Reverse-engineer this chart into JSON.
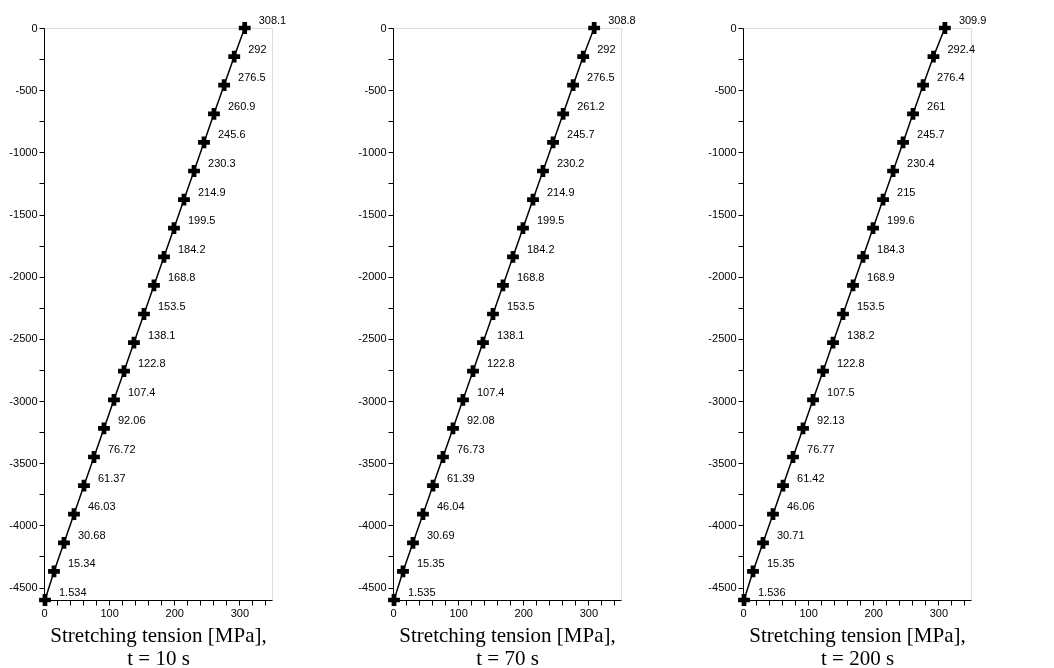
{
  "chart_data": [
    {
      "type": "line",
      "xlabel": "Stretching tension [MPa],\nt = 10 s",
      "marker": "cross",
      "grid": false,
      "xlim": [
        0,
        350
      ],
      "ylim": [
        -4600,
        0
      ],
      "xticks": [
        0,
        {
          "value": 20,
          "label": null
        },
        {
          "value": 40,
          "label": null
        },
        {
          "value": 60,
          "label": null
        },
        {
          "value": 80,
          "label": null
        },
        100,
        {
          "value": 120,
          "label": null
        },
        {
          "value": 140,
          "label": null
        },
        {
          "value": 160,
          "label": null
        },
        {
          "value": 180,
          "label": null
        },
        200,
        {
          "value": 220,
          "label": null
        },
        {
          "value": 240,
          "label": null
        },
        {
          "value": 260,
          "label": null
        },
        {
          "value": 280,
          "label": null
        },
        300,
        {
          "value": 320,
          "label": null
        },
        {
          "value": 340,
          "label": null
        }
      ],
      "yticks": [
        0,
        {
          "value": -250,
          "label": null
        },
        -500,
        {
          "value": -750,
          "label": null
        },
        -1000,
        {
          "value": -1250,
          "label": null
        },
        -1500,
        {
          "value": -1750,
          "label": null
        },
        -2000,
        {
          "value": -2250,
          "label": null
        },
        -2500,
        {
          "value": -2750,
          "label": null
        },
        -3000,
        {
          "value": -3250,
          "label": null
        },
        -3500,
        {
          "value": -3750,
          "label": null
        },
        -4000,
        {
          "value": -4250,
          "label": null
        },
        -4500
      ],
      "series": [
        {
          "color": "#000000",
          "x": [
            308.1,
            292,
            276.5,
            260.9,
            245.6,
            230.3,
            214.9,
            199.5,
            184.2,
            168.8,
            153.5,
            138.1,
            122.8,
            107.4,
            92.06,
            76.72,
            61.37,
            46.03,
            30.68,
            15.34,
            1.534
          ],
          "values": [
            0,
            -230,
            -460,
            -690,
            -920,
            -1150,
            -1380,
            -1610,
            -1840,
            -2070,
            -2300,
            -2530,
            -2760,
            -2990,
            -3220,
            -3450,
            -3680,
            -3910,
            -4140,
            -4370,
            -4600
          ]
        }
      ],
      "annotations": [
        {
          "text": "308.1",
          "x": 308.1,
          "y": 0
        },
        {
          "text": "292",
          "x": 292,
          "y": -230
        },
        {
          "text": "276.5",
          "x": 276.5,
          "y": -460
        },
        {
          "text": "260.9",
          "x": 260.9,
          "y": -690
        },
        {
          "text": "245.6",
          "x": 245.6,
          "y": -920
        },
        {
          "text": "230.3",
          "x": 230.3,
          "y": -1150
        },
        {
          "text": "214.9",
          "x": 214.9,
          "y": -1380
        },
        {
          "text": "199.5",
          "x": 199.5,
          "y": -1610
        },
        {
          "text": "184.2",
          "x": 184.2,
          "y": -1840
        },
        {
          "text": "168.8",
          "x": 168.8,
          "y": -2070
        },
        {
          "text": "153.5",
          "x": 153.5,
          "y": -2300
        },
        {
          "text": "138.1",
          "x": 138.1,
          "y": -2530
        },
        {
          "text": "122.8",
          "x": 122.8,
          "y": -2760
        },
        {
          "text": "107.4",
          "x": 107.4,
          "y": -2990
        },
        {
          "text": "92.06",
          "x": 92.06,
          "y": -3220
        },
        {
          "text": "76.72",
          "x": 76.72,
          "y": -3450
        },
        {
          "text": "61.37",
          "x": 61.37,
          "y": -3680
        },
        {
          "text": "46.03",
          "x": 46.03,
          "y": -3910
        },
        {
          "text": "30.68",
          "x": 30.68,
          "y": -4140
        },
        {
          "text": "15.34",
          "x": 15.34,
          "y": -4370
        },
        {
          "text": "1.534",
          "x": 1.534,
          "y": -4600
        }
      ]
    },
    {
      "type": "line",
      "xlabel": "Stretching tension [MPa],\nt = 70 s",
      "marker": "cross",
      "grid": false,
      "xlim": [
        0,
        350
      ],
      "ylim": [
        -4600,
        0
      ],
      "xticks": [
        0,
        {
          "value": 20,
          "label": null
        },
        {
          "value": 40,
          "label": null
        },
        {
          "value": 60,
          "label": null
        },
        {
          "value": 80,
          "label": null
        },
        100,
        {
          "value": 120,
          "label": null
        },
        {
          "value": 140,
          "label": null
        },
        {
          "value": 160,
          "label": null
        },
        {
          "value": 180,
          "label": null
        },
        200,
        {
          "value": 220,
          "label": null
        },
        {
          "value": 240,
          "label": null
        },
        {
          "value": 260,
          "label": null
        },
        {
          "value": 280,
          "label": null
        },
        300,
        {
          "value": 320,
          "label": null
        },
        {
          "value": 340,
          "label": null
        }
      ],
      "yticks": [
        0,
        {
          "value": -250,
          "label": null
        },
        -500,
        {
          "value": -750,
          "label": null
        },
        -1000,
        {
          "value": -1250,
          "label": null
        },
        -1500,
        {
          "value": -1750,
          "label": null
        },
        -2000,
        {
          "value": -2250,
          "label": null
        },
        -2500,
        {
          "value": -2750,
          "label": null
        },
        -3000,
        {
          "value": -3250,
          "label": null
        },
        -3500,
        {
          "value": -3750,
          "label": null
        },
        -4000,
        {
          "value": -4250,
          "label": null
        },
        -4500
      ],
      "series": [
        {
          "color": "#000000",
          "x": [
            308.8,
            292,
            276.5,
            261.2,
            245.7,
            230.2,
            214.9,
            199.5,
            184.2,
            168.8,
            153.5,
            138.1,
            122.8,
            107.4,
            92.08,
            76.73,
            61.39,
            46.04,
            30.69,
            15.35,
            1.535
          ],
          "values": [
            0,
            -230,
            -460,
            -690,
            -920,
            -1150,
            -1380,
            -1610,
            -1840,
            -2070,
            -2300,
            -2530,
            -2760,
            -2990,
            -3220,
            -3450,
            -3680,
            -3910,
            -4140,
            -4370,
            -4600
          ]
        }
      ],
      "annotations": [
        {
          "text": "308.8",
          "x": 308.8,
          "y": 0
        },
        {
          "text": "292",
          "x": 292,
          "y": -230
        },
        {
          "text": "276.5",
          "x": 276.5,
          "y": -460
        },
        {
          "text": "261.2",
          "x": 261.2,
          "y": -690
        },
        {
          "text": "245.7",
          "x": 245.7,
          "y": -920
        },
        {
          "text": "230.2",
          "x": 230.2,
          "y": -1150
        },
        {
          "text": "214.9",
          "x": 214.9,
          "y": -1380
        },
        {
          "text": "199.5",
          "x": 199.5,
          "y": -1610
        },
        {
          "text": "184.2",
          "x": 184.2,
          "y": -1840
        },
        {
          "text": "168.8",
          "x": 168.8,
          "y": -2070
        },
        {
          "text": "153.5",
          "x": 153.5,
          "y": -2300
        },
        {
          "text": "138.1",
          "x": 138.1,
          "y": -2530
        },
        {
          "text": "122.8",
          "x": 122.8,
          "y": -2760
        },
        {
          "text": "107.4",
          "x": 107.4,
          "y": -2990
        },
        {
          "text": "92.08",
          "x": 92.08,
          "y": -3220
        },
        {
          "text": "76.73",
          "x": 76.73,
          "y": -3450
        },
        {
          "text": "61.39",
          "x": 61.39,
          "y": -3680
        },
        {
          "text": "46.04",
          "x": 46.04,
          "y": -3910
        },
        {
          "text": "30.69",
          "x": 30.69,
          "y": -4140
        },
        {
          "text": "15.35",
          "x": 15.35,
          "y": -4370
        },
        {
          "text": "1.535",
          "x": 1.535,
          "y": -4600
        }
      ]
    },
    {
      "type": "line",
      "xlabel": "Stretching tension [MPa],\nt = 200 s",
      "marker": "cross",
      "grid": false,
      "xlim": [
        0,
        350
      ],
      "ylim": [
        -4600,
        0
      ],
      "xticks": [
        0,
        {
          "value": 20,
          "label": null
        },
        {
          "value": 40,
          "label": null
        },
        {
          "value": 60,
          "label": null
        },
        {
          "value": 80,
          "label": null
        },
        100,
        {
          "value": 120,
          "label": null
        },
        {
          "value": 140,
          "label": null
        },
        {
          "value": 160,
          "label": null
        },
        {
          "value": 180,
          "label": null
        },
        200,
        {
          "value": 220,
          "label": null
        },
        {
          "value": 240,
          "label": null
        },
        {
          "value": 260,
          "label": null
        },
        {
          "value": 280,
          "label": null
        },
        300,
        {
          "value": 320,
          "label": null
        },
        {
          "value": 340,
          "label": null
        }
      ],
      "yticks": [
        0,
        {
          "value": -250,
          "label": null
        },
        -500,
        {
          "value": -750,
          "label": null
        },
        -1000,
        {
          "value": -1250,
          "label": null
        },
        -1500,
        {
          "value": -1750,
          "label": null
        },
        -2000,
        {
          "value": -2250,
          "label": null
        },
        -2500,
        {
          "value": -2750,
          "label": null
        },
        -3000,
        {
          "value": -3250,
          "label": null
        },
        -3500,
        {
          "value": -3750,
          "label": null
        },
        -4000,
        {
          "value": -4250,
          "label": null
        },
        -4500
      ],
      "series": [
        {
          "color": "#000000",
          "x": [
            309.9,
            292.4,
            276.4,
            261,
            245.7,
            230.4,
            215,
            199.6,
            184.3,
            168.9,
            153.5,
            138.2,
            122.8,
            107.5,
            92.13,
            76.77,
            61.42,
            46.06,
            30.71,
            15.35,
            1.536
          ],
          "values": [
            0,
            -230,
            -460,
            -690,
            -920,
            -1150,
            -1380,
            -1610,
            -1840,
            -2070,
            -2300,
            -2530,
            -2760,
            -2990,
            -3220,
            -3450,
            -3680,
            -3910,
            -4140,
            -4370,
            -4600
          ]
        }
      ],
      "annotations": [
        {
          "text": "309.9",
          "x": 309.9,
          "y": 0
        },
        {
          "text": "292.4",
          "x": 292.4,
          "y": -230
        },
        {
          "text": "276.4",
          "x": 276.4,
          "y": -460
        },
        {
          "text": "261",
          "x": 261,
          "y": -690
        },
        {
          "text": "245.7",
          "x": 245.7,
          "y": -920
        },
        {
          "text": "230.4",
          "x": 230.4,
          "y": -1150
        },
        {
          "text": "215",
          "x": 215,
          "y": -1380
        },
        {
          "text": "199.6",
          "x": 199.6,
          "y": -1610
        },
        {
          "text": "184.3",
          "x": 184.3,
          "y": -1840
        },
        {
          "text": "168.9",
          "x": 168.9,
          "y": -2070
        },
        {
          "text": "153.5",
          "x": 153.5,
          "y": -2300
        },
        {
          "text": "138.2",
          "x": 138.2,
          "y": -2530
        },
        {
          "text": "122.8",
          "x": 122.8,
          "y": -2760
        },
        {
          "text": "107.5",
          "x": 107.5,
          "y": -2990
        },
        {
          "text": "92.13",
          "x": 92.13,
          "y": -3220
        },
        {
          "text": "76.77",
          "x": 76.77,
          "y": -3450
        },
        {
          "text": "61.42",
          "x": 61.42,
          "y": -3680
        },
        {
          "text": "46.06",
          "x": 46.06,
          "y": -3910
        },
        {
          "text": "30.71",
          "x": 30.71,
          "y": -4140
        },
        {
          "text": "15.35",
          "x": 15.35,
          "y": -4370
        },
        {
          "text": "1.536",
          "x": 1.536,
          "y": -4600
        }
      ]
    }
  ]
}
